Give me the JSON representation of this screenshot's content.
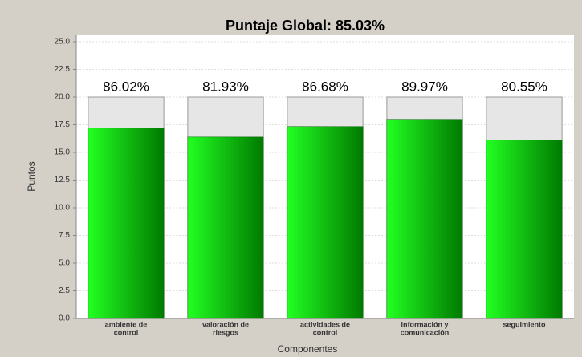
{
  "chart_data": {
    "type": "bar",
    "title": "Puntaje Global: 85.03%",
    "xlabel": "Componentes",
    "ylabel": "Puntos",
    "categories": [
      [
        "ambiente de",
        "control"
      ],
      [
        "valoración de",
        "riesgos"
      ],
      [
        "actividades de",
        "control"
      ],
      [
        "información y",
        "comunicación"
      ],
      [
        "seguimiento"
      ]
    ],
    "values": [
      17.204,
      16.386,
      17.336,
      17.994,
      16.11
    ],
    "value_labels": [
      "86.02%",
      "81.93%",
      "86.68%",
      "89.97%",
      "80.55%"
    ],
    "max_values": [
      20,
      20,
      20,
      20,
      20
    ],
    "color": "#00e000",
    "max_color": "#e6e6e6",
    "ylim": [
      0,
      25
    ],
    "yticks": [
      {
        "value": 0,
        "label": "0.0"
      },
      2.5,
      {
        "value": 5,
        "label": "5.0"
      },
      7.5,
      {
        "value": 10,
        "label": "10.0"
      },
      12.5,
      {
        "value": 15,
        "label": "15.0"
      },
      17.5,
      {
        "value": 20,
        "label": "20.0"
      },
      22.5,
      {
        "value": 25,
        "label": "25.0"
      }
    ],
    "grid": true
  }
}
